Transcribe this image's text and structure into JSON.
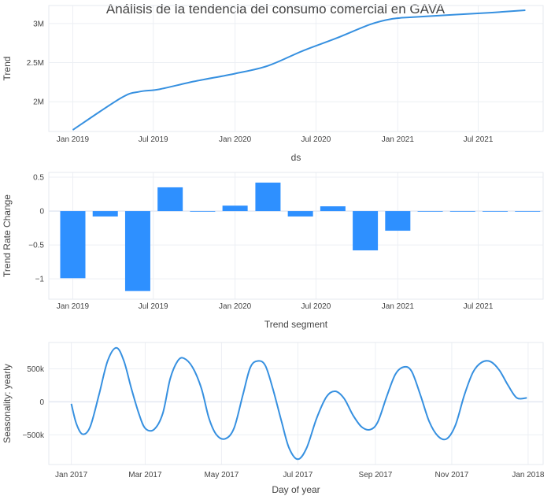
{
  "colors": {
    "line": "#3690e0",
    "bar": "#2e90ff",
    "text": "#444444",
    "grid": "#eceff4"
  },
  "title": "Análisis de la tendencia del consumo comercial en GAVA",
  "chart_data": [
    {
      "type": "line",
      "xlabel": "ds",
      "ylabel": "Trend",
      "grid": true,
      "xlim": [
        "2018-11-08",
        "2021-11-24"
      ],
      "ylim": [
        1620000,
        3230000
      ],
      "x_ticks": [
        {
          "date": "2019-01-01",
          "label": "Jan 2019"
        },
        {
          "date": "2019-07-01",
          "label": "Jul 2019"
        },
        {
          "date": "2020-01-01",
          "label": "Jan 2020"
        },
        {
          "date": "2020-07-01",
          "label": "Jul 2020"
        },
        {
          "date": "2021-01-01",
          "label": "Jan 2021"
        },
        {
          "date": "2021-07-01",
          "label": "Jul 2021"
        }
      ],
      "y_ticks": [
        {
          "value": 2000000,
          "label": "2M"
        },
        {
          "value": 2500000,
          "label": "2.5M"
        },
        {
          "value": 3000000,
          "label": "3M"
        }
      ],
      "x": [
        "2019-01-01",
        "2019-04-20",
        "2019-06-01",
        "2019-07-15",
        "2019-10-01",
        "2020-01-01",
        "2020-03-15",
        "2020-06-01",
        "2020-08-15",
        "2020-11-01",
        "2020-12-20",
        "2021-02-01",
        "2021-05-01",
        "2021-08-01",
        "2021-10-15"
      ],
      "y": [
        1640000,
        2050000,
        2130000,
        2160000,
        2260000,
        2360000,
        2460000,
        2650000,
        2810000,
        2990000,
        3060000,
        3080000,
        3110000,
        3140000,
        3170000
      ]
    },
    {
      "type": "bar",
      "xlabel": "Trend segment",
      "ylabel": "Trend Rate Change",
      "grid": true,
      "xlim": [
        "2018-11-08",
        "2021-11-24"
      ],
      "ylim": [
        -1.3,
        0.57
      ],
      "x_ticks": [
        {
          "date": "2019-01-01",
          "label": "Jan 2019"
        },
        {
          "date": "2019-07-01",
          "label": "Jul 2019"
        },
        {
          "date": "2020-01-01",
          "label": "Jan 2020"
        },
        {
          "date": "2020-07-01",
          "label": "Jul 2020"
        },
        {
          "date": "2021-01-01",
          "label": "Jan 2021"
        },
        {
          "date": "2021-07-01",
          "label": "Jul 2021"
        }
      ],
      "y_ticks": [
        {
          "value": 0.5,
          "label": "0.5"
        },
        {
          "value": 0,
          "label": "0"
        },
        {
          "value": -0.5,
          "label": "−0.5"
        },
        {
          "value": -1,
          "label": "−1"
        }
      ],
      "x": [
        "2019-01-01",
        "2019-03-15",
        "2019-05-27",
        "2019-08-08",
        "2019-10-20",
        "2020-01-01",
        "2020-03-15",
        "2020-05-27",
        "2020-08-08",
        "2020-10-20",
        "2021-01-01",
        "2021-03-15",
        "2021-05-27",
        "2021-08-08",
        "2021-10-20"
      ],
      "values": [
        -0.99,
        -0.08,
        -1.18,
        0.35,
        0.0,
        0.08,
        0.42,
        -0.08,
        0.07,
        -0.58,
        -0.29,
        0.0,
        0.0,
        0.0,
        0.0
      ]
    },
    {
      "type": "line",
      "xlabel": "Day of year",
      "ylabel": "Seasonality: yearly",
      "grid": true,
      "xlim": [
        "2016-12-14",
        "2018-01-13"
      ],
      "ylim": [
        -950000,
        900000
      ],
      "x_ticks": [
        {
          "date": "2017-01-01",
          "label": "Jan 2017"
        },
        {
          "date": "2017-03-01",
          "label": "Mar 2017"
        },
        {
          "date": "2017-05-01",
          "label": "May 2017"
        },
        {
          "date": "2017-07-01",
          "label": "Jul 2017"
        },
        {
          "date": "2017-09-01",
          "label": "Sep 2017"
        },
        {
          "date": "2017-11-01",
          "label": "Nov 2017"
        },
        {
          "date": "2018-01-01",
          "label": "Jan 2018"
        }
      ],
      "y_ticks": [
        {
          "value": 500000,
          "label": "500k"
        },
        {
          "value": 0,
          "label": "0"
        },
        {
          "value": -500000,
          "label": "−500k"
        }
      ],
      "x": [
        "2017-01-01",
        "2017-01-05",
        "2017-01-10",
        "2017-01-16",
        "2017-01-23",
        "2017-01-30",
        "2017-02-06",
        "2017-02-12",
        "2017-02-18",
        "2017-02-24",
        "2017-03-01",
        "2017-03-08",
        "2017-03-15",
        "2017-03-21",
        "2017-03-27",
        "2017-04-01",
        "2017-04-08",
        "2017-04-15",
        "2017-04-21",
        "2017-04-27",
        "2017-05-04",
        "2017-05-11",
        "2017-05-18",
        "2017-05-24",
        "2017-05-30",
        "2017-06-05",
        "2017-06-11",
        "2017-06-18",
        "2017-06-24",
        "2017-07-01",
        "2017-07-08",
        "2017-07-16",
        "2017-07-24",
        "2017-07-31",
        "2017-08-07",
        "2017-08-14",
        "2017-08-21",
        "2017-08-28",
        "2017-09-03",
        "2017-09-10",
        "2017-09-17",
        "2017-09-24",
        "2017-09-30",
        "2017-10-07",
        "2017-10-14",
        "2017-10-21",
        "2017-10-28",
        "2017-11-04",
        "2017-11-11",
        "2017-11-18",
        "2017-11-25",
        "2017-12-02",
        "2017-12-09",
        "2017-12-16",
        "2017-12-23",
        "2017-12-31"
      ],
      "y": [
        -30000,
        -330000,
        -490000,
        -380000,
        100000,
        620000,
        820000,
        620000,
        200000,
        -180000,
        -400000,
        -420000,
        -180000,
        350000,
        620000,
        660000,
        520000,
        200000,
        -250000,
        -500000,
        -560000,
        -400000,
        100000,
        520000,
        620000,
        550000,
        200000,
        -300000,
        -700000,
        -870000,
        -700000,
        -250000,
        80000,
        160000,
        50000,
        -200000,
        -380000,
        -420000,
        -300000,
        80000,
        420000,
        530000,
        460000,
        100000,
        -300000,
        -520000,
        -560000,
        -350000,
        100000,
        450000,
        600000,
        610000,
        480000,
        250000,
        60000,
        60000
      ]
    }
  ]
}
